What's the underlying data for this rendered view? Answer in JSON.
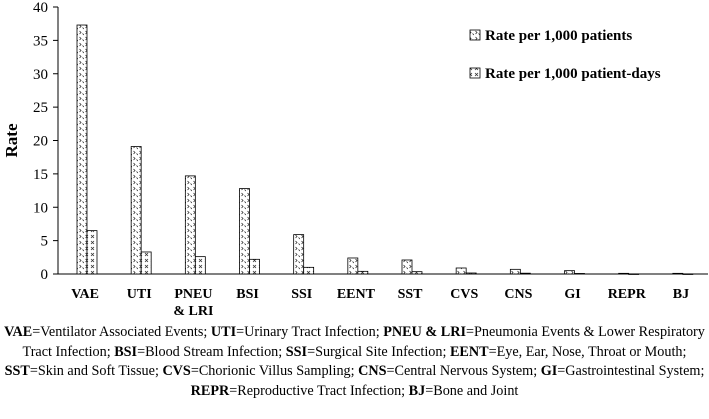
{
  "chart_data": {
    "type": "bar",
    "ylabel": "Rate",
    "ylim": [
      0,
      40
    ],
    "yticks": [
      0,
      5,
      10,
      15,
      20,
      25,
      30,
      35,
      40
    ],
    "grid": false,
    "legend_position": "top-right",
    "categories": [
      "VAE",
      "UTI",
      "PNEU\n& LRI",
      "BSI",
      "SSI",
      "EENT",
      "SST",
      "CVS",
      "CNS",
      "GI",
      "REPR",
      "BJ"
    ],
    "series": [
      {
        "name": "Rate per 1,000 patients",
        "values": [
          37.3,
          19.1,
          14.7,
          12.8,
          5.9,
          2.4,
          2.1,
          0.9,
          0.7,
          0.5,
          0.1,
          0.1
        ]
      },
      {
        "name": "Rate per 1,000 patient-days",
        "values": [
          6.5,
          3.3,
          2.6,
          2.2,
          1.0,
          0.4,
          0.35,
          0.15,
          0.12,
          0.08,
          0.02,
          0.02
        ]
      }
    ]
  },
  "footnote": [
    {
      "abbr": "VAE",
      "text": "=Ventilator Associated Events; "
    },
    {
      "abbr": "UTI",
      "text": "=Urinary Tract Infection; "
    },
    {
      "abbr": "PNEU & LRI",
      "text": "=Pneumonia Events & Lower Respiratory Tract Infection; "
    },
    {
      "abbr": "BSI",
      "text": "=Blood Stream Infection; "
    },
    {
      "abbr": "SSI",
      "text": "=Surgical Site Infection; "
    },
    {
      "abbr": "EENT",
      "text": "=Eye, Ear, Nose, Throat or Mouth; "
    },
    {
      "abbr": "SST",
      "text": "=Skin and Soft Tissue; "
    },
    {
      "abbr": "CVS",
      "text": "=Chorionic Villus Sampling; "
    },
    {
      "abbr": "CNS",
      "text": "=Central Nervous System; "
    },
    {
      "abbr": "GI",
      "text": "=Gastrointestinal System; "
    },
    {
      "abbr": "REPR",
      "text": "=Reproductive Tract Infection; "
    },
    {
      "abbr": "BJ",
      "text": "=Bone and Joint"
    }
  ]
}
